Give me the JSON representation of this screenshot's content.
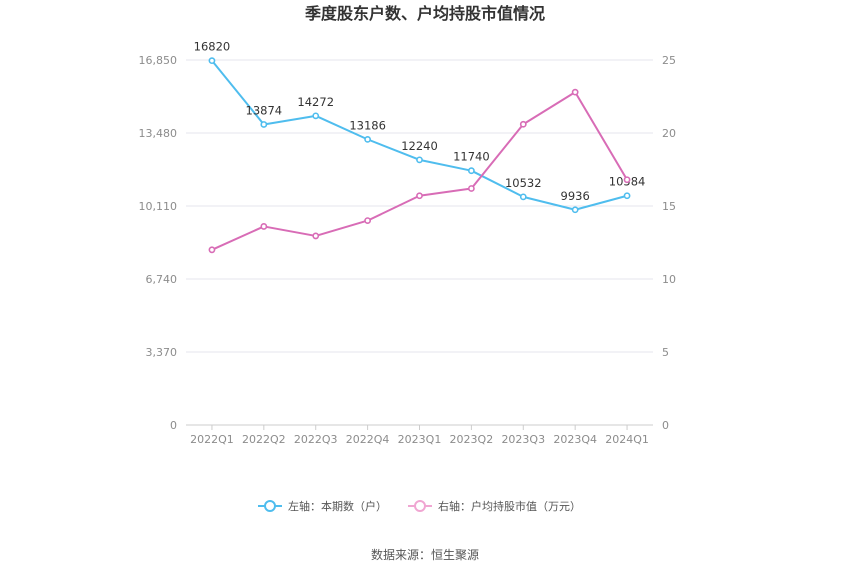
{
  "chart_data": {
    "type": "line",
    "title": "季度股东户数、户均持股市值情况",
    "categories": [
      "2022Q1",
      "2022Q2",
      "2022Q3",
      "2022Q4",
      "2023Q1",
      "2023Q2",
      "2023Q3",
      "2023Q4",
      "2024Q1"
    ],
    "series": [
      {
        "name": "左轴：本期数（户）",
        "axis": "left",
        "color": "#4fbdee",
        "values": [
          16820,
          13874,
          14272,
          13186,
          12240,
          11740,
          10532,
          9936,
          10584
        ],
        "labels": [
          "16820",
          "13874",
          "14272",
          "13186",
          "12240",
          "11740",
          "10532",
          "9936",
          "10584"
        ]
      },
      {
        "name": "右轴：户均持股市值（万元）",
        "axis": "right",
        "color": "#d86cb6",
        "values": [
          12.0,
          13.6,
          12.95,
          14.0,
          15.7,
          16.2,
          20.6,
          22.8,
          16.8
        ]
      }
    ],
    "y_left": {
      "ylim": [
        0,
        16850
      ],
      "ticks": [
        0,
        3370,
        6740,
        10110,
        13480,
        16850
      ],
      "tick_labels": [
        "0",
        "3,370",
        "6,740",
        "10,110",
        "13,480",
        "16,850"
      ]
    },
    "y_right": {
      "ylim": [
        0,
        25
      ],
      "ticks": [
        0,
        5,
        10,
        15,
        20,
        25
      ],
      "tick_labels": [
        "0",
        "5",
        "10",
        "15",
        "20",
        "25"
      ]
    },
    "grid": true,
    "legend_position": "bottom"
  },
  "footer": {
    "source": "数据来源：恒生聚源"
  }
}
